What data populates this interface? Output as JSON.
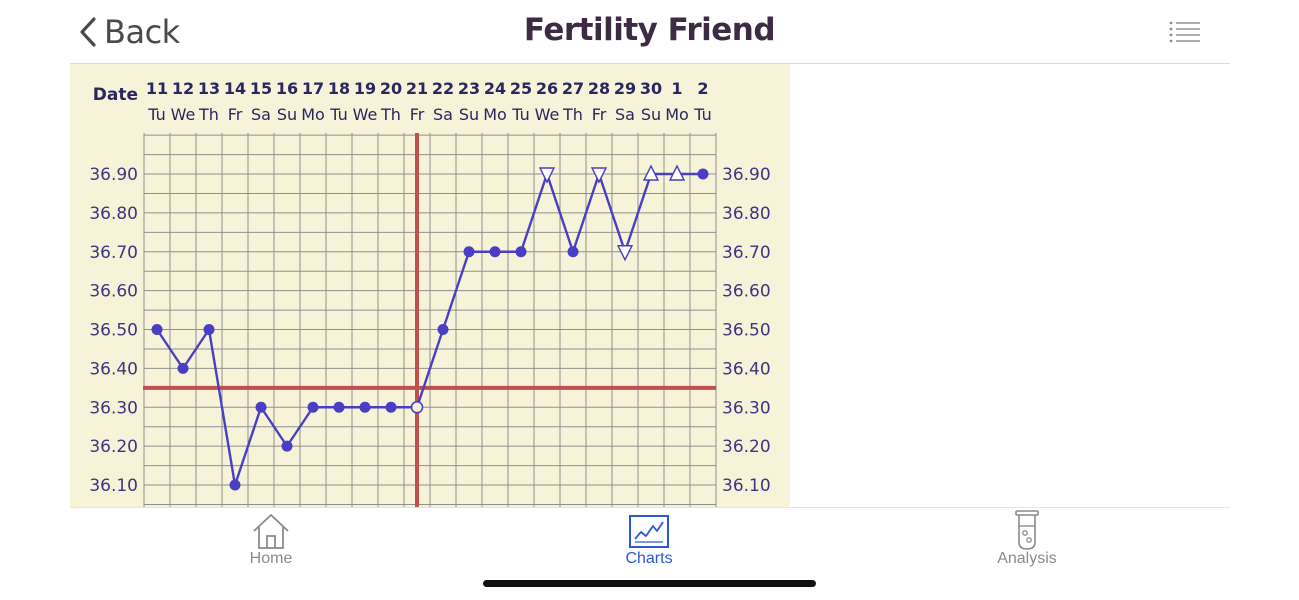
{
  "nav": {
    "back_label": "Back",
    "title": "Fertility Friend",
    "back_icon": "chevron-left-icon",
    "menu_icon": "list-menu-icon"
  },
  "chart_data": {
    "type": "line",
    "date_row_label": "Date",
    "x": [
      "11",
      "12",
      "13",
      "14",
      "15",
      "16",
      "17",
      "18",
      "19",
      "20",
      "21",
      "22",
      "23",
      "24",
      "25",
      "26",
      "27",
      "28",
      "29",
      "30",
      "1",
      "2"
    ],
    "weekdays": [
      "Tu",
      "We",
      "Th",
      "Fr",
      "Sa",
      "Su",
      "Mo",
      "Tu",
      "We",
      "Th",
      "Fr",
      "Sa",
      "Su",
      "Mo",
      "Tu",
      "We",
      "Th",
      "Fr",
      "Sa",
      "Su",
      "Mo",
      "Tu"
    ],
    "series": [
      {
        "values": [
          36.5,
          36.4,
          36.5,
          36.1,
          36.3,
          36.2,
          36.3,
          36.3,
          36.3,
          36.3,
          36.3,
          36.5,
          36.7,
          36.7,
          36.7,
          36.9,
          36.7,
          36.9,
          36.7,
          36.9,
          36.9,
          36.9
        ],
        "markers": [
          "dot",
          "dot",
          "dot",
          "dot",
          "dot",
          "dot",
          "dot",
          "dot",
          "dot",
          "dot",
          "open-dot",
          "dot",
          "dot",
          "dot",
          "dot",
          "down-triangle",
          "dot",
          "down-triangle",
          "down-triangle",
          "up-triangle",
          "up-triangle",
          "dot"
        ],
        "color": "#4a3fc4"
      }
    ],
    "yticks": [
      "36.90",
      "36.80",
      "36.70",
      "36.60",
      "36.50",
      "36.40",
      "36.30",
      "36.20",
      "36.10"
    ],
    "ylim": [
      36.05,
      37.14
    ],
    "coverline": 36.35,
    "ovulation_day": "21",
    "coverline_color": "#c0504d",
    "grid": true,
    "background": "#f6f3d8",
    "tick_color": "#3d3580",
    "date_color": "#2a2660"
  },
  "tabs": [
    {
      "label": "Home",
      "icon": "house-icon",
      "active": false
    },
    {
      "label": "Charts",
      "icon": "line-chart-icon",
      "active": true
    },
    {
      "label": "Analysis",
      "icon": "test-tube-icon",
      "active": false
    }
  ],
  "colors": {
    "accent": "#2b59d6",
    "inactive": "#8a8a8a",
    "title": "#3d2a43"
  }
}
